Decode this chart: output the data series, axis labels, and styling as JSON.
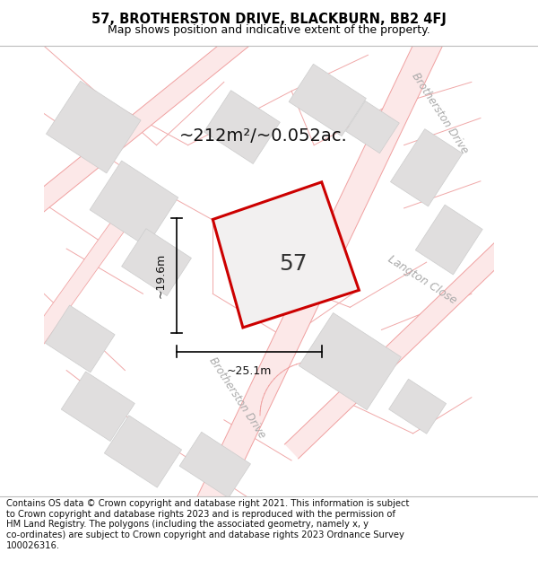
{
  "title": "57, BROTHERSTON DRIVE, BLACKBURN, BB2 4FJ",
  "subtitle": "Map shows position and indicative extent of the property.",
  "footer": "Contains OS data © Crown copyright and database right 2021. This information is subject\nto Crown copyright and database rights 2023 and is reproduced with the permission of\nHM Land Registry. The polygons (including the associated geometry, namely x, y\nco-ordinates) are subject to Crown copyright and database rights 2023 Ordnance Survey\n100026316.",
  "map_bg": "#ffffff",
  "road_fill": "#fce8e8",
  "road_line": "#f0a0a0",
  "road_line_lw": 0.7,
  "bld_fill": "#e0dede",
  "bld_edge": "#cccccc",
  "bld_lw": 0.5,
  "plot_color": "#cc0000",
  "plot_lw": 2.2,
  "plot_label": "57",
  "area_text": "~212m²/~0.052ac.",
  "dim_width_label": "~25.1m",
  "dim_height_label": "~19.6m",
  "road_label_bd1": "Brotherston Drive",
  "road_label_bd2": "Brotherston Drive",
  "road_label_lc": "Langton Close",
  "title_fontsize": 10.5,
  "subtitle_fontsize": 9,
  "footer_fontsize": 7.2,
  "area_fontsize": 14,
  "label57_fontsize": 18,
  "dim_fontsize": 9
}
